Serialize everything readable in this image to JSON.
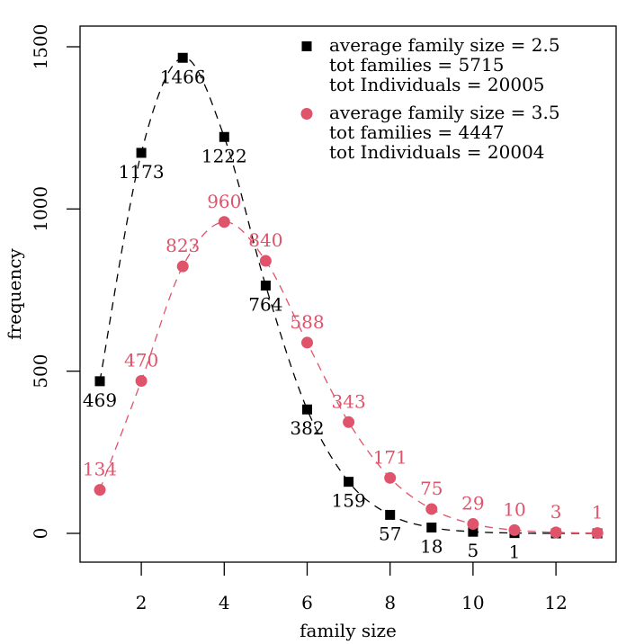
{
  "chart_data": {
    "type": "line",
    "title": "",
    "xlabel": "family size",
    "ylabel": "frequency",
    "xlim": [
      0.5,
      13.5
    ],
    "ylim": [
      -90,
      1560
    ],
    "x_ticks": [
      2,
      4,
      6,
      8,
      10,
      12
    ],
    "x_tick_labels": [
      "2",
      "4",
      "6",
      "8",
      "10",
      "12"
    ],
    "y_ticks": [
      0,
      500,
      1000,
      1500
    ],
    "y_tick_labels": [
      "0",
      "500",
      "1000",
      "1500"
    ],
    "grid": false,
    "legend_position": "top-right",
    "x": [
      1,
      2,
      3,
      4,
      5,
      6,
      7,
      8,
      9,
      10,
      11,
      12,
      13
    ],
    "series": [
      {
        "name": "average family size = 2.5",
        "legend_lines": [
          "average family size = 2.5",
          "tot families = 5715",
          "tot Individuals = 20005"
        ],
        "color": "#000000",
        "marker": "square",
        "line_style": "dashed",
        "values": [
          469,
          1173,
          1466,
          1222,
          764,
          382,
          159,
          57,
          18,
          5,
          1,
          0,
          0
        ],
        "labels": [
          "469",
          "1173",
          "1466",
          "1222",
          "764",
          "382",
          "159",
          "57",
          "18",
          "5",
          "1",
          "",
          ""
        ],
        "label_position": "below"
      },
      {
        "name": "average family size = 3.5",
        "legend_lines": [
          "average family size = 3.5",
          "tot families = 4447",
          "tot Individuals = 20004"
        ],
        "color": "#DF536B",
        "marker": "circle",
        "line_style": "dashed",
        "values": [
          134,
          470,
          823,
          960,
          840,
          588,
          343,
          171,
          75,
          29,
          10,
          3,
          1
        ],
        "labels": [
          "134",
          "470",
          "823",
          "960",
          "840",
          "588",
          "343",
          "171",
          "75",
          "29",
          "10",
          "3",
          "1"
        ],
        "label_position": "above"
      }
    ]
  }
}
